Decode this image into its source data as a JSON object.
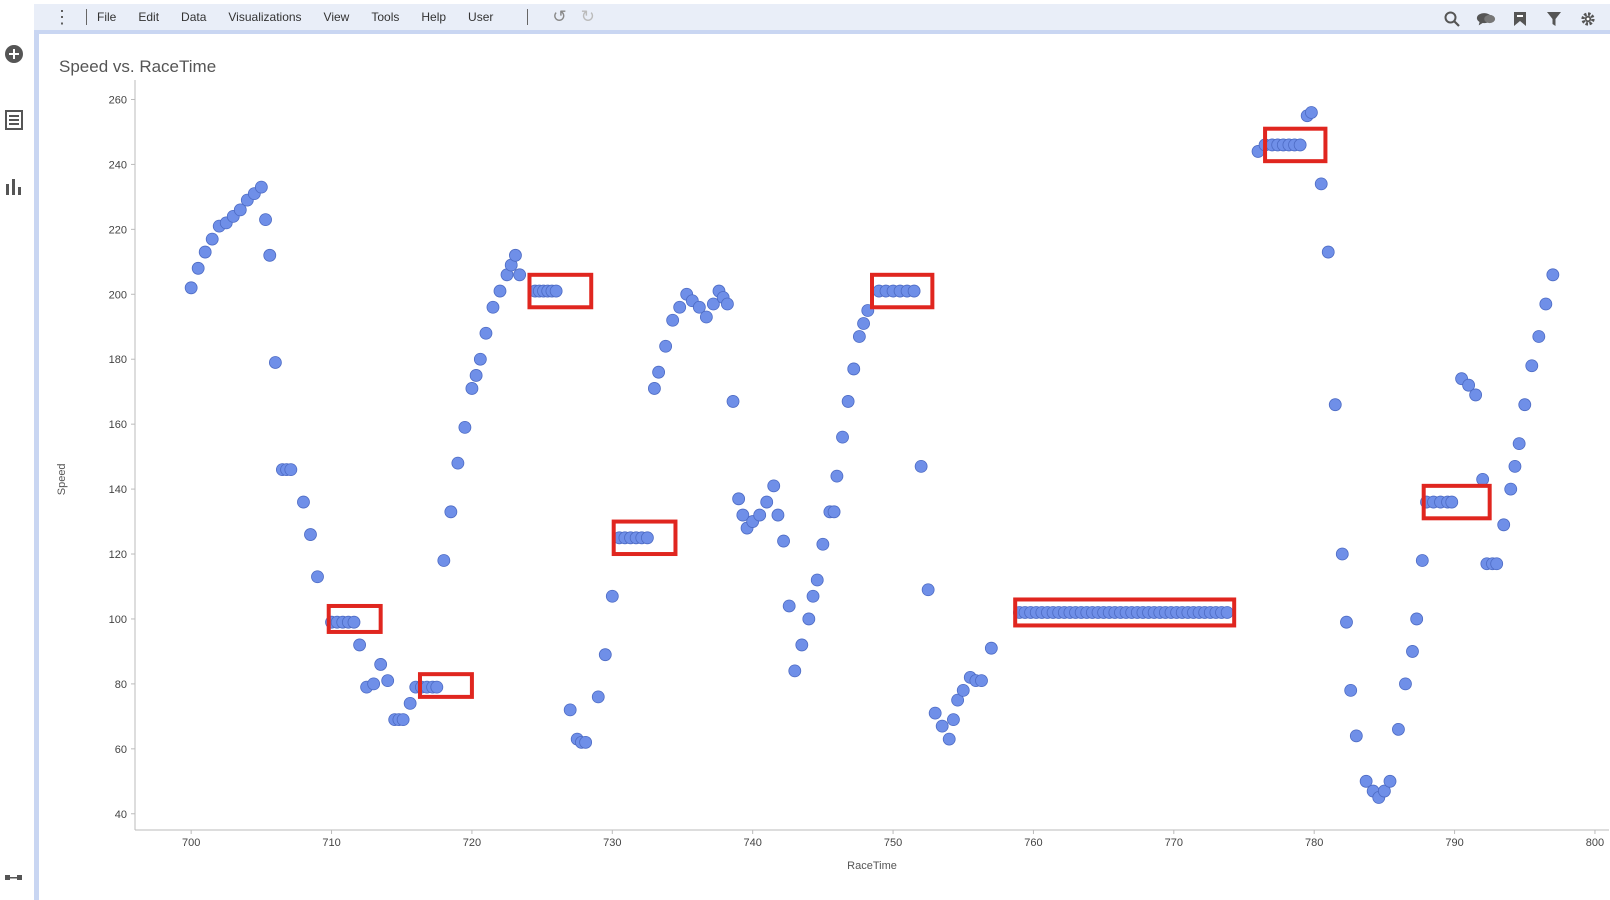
{
  "menu": {
    "items": [
      "File",
      "Edit",
      "Data",
      "Visualizations",
      "View",
      "Tools",
      "Help",
      "User"
    ],
    "undo_icon": "undo-icon",
    "redo_icon": "redo-icon"
  },
  "toolbar_right": [
    "search-icon",
    "comment-icon",
    "bookmark-icon",
    "filter-icon",
    "gear-icon"
  ],
  "left_rail": [
    "add-circle-icon",
    "list-icon",
    "bar-chart-icon"
  ],
  "colors": {
    "point": "#6f8fe8",
    "highlight": "#e0261f",
    "menubar": "#e9eef8"
  },
  "chart_data": {
    "type": "scatter",
    "title": "Speed vs. RaceTime",
    "xlabel": "RaceTime",
    "ylabel": "Speed",
    "xlim": [
      696,
      801
    ],
    "ylim": [
      35,
      266
    ],
    "xticks": [
      700,
      710,
      720,
      730,
      740,
      750,
      760,
      770,
      780,
      790,
      800
    ],
    "yticks": [
      40,
      60,
      80,
      100,
      120,
      140,
      160,
      180,
      200,
      220,
      240,
      260
    ],
    "grid": false,
    "points": [
      [
        700,
        202
      ],
      [
        700.5,
        208
      ],
      [
        701,
        213
      ],
      [
        701.5,
        217
      ],
      [
        702,
        221
      ],
      [
        702.5,
        222
      ],
      [
        703,
        224
      ],
      [
        703.5,
        226
      ],
      [
        704,
        229
      ],
      [
        704.5,
        231
      ],
      [
        705,
        233
      ],
      [
        705.3,
        223
      ],
      [
        705.6,
        212
      ],
      [
        706,
        179
      ],
      [
        706.5,
        146
      ],
      [
        706.8,
        146
      ],
      [
        707.1,
        146
      ],
      [
        708,
        136
      ],
      [
        708.5,
        126
      ],
      [
        709,
        113
      ],
      [
        710,
        99
      ],
      [
        710.4,
        99
      ],
      [
        710.8,
        99
      ],
      [
        711.2,
        99
      ],
      [
        711.6,
        99
      ],
      [
        712,
        92
      ],
      [
        712.5,
        79
      ],
      [
        713,
        80
      ],
      [
        713.5,
        86
      ],
      [
        714,
        81
      ],
      [
        714.5,
        69
      ],
      [
        714.8,
        69
      ],
      [
        715.1,
        69
      ],
      [
        715.6,
        74
      ],
      [
        716,
        79
      ],
      [
        716.4,
        79
      ],
      [
        716.8,
        79
      ],
      [
        717.2,
        79
      ],
      [
        717.5,
        79
      ],
      [
        718,
        118
      ],
      [
        718.5,
        133
      ],
      [
        719,
        148
      ],
      [
        719.5,
        159
      ],
      [
        720,
        171
      ],
      [
        720.3,
        175
      ],
      [
        720.6,
        180
      ],
      [
        721,
        188
      ],
      [
        721.5,
        196
      ],
      [
        722,
        201
      ],
      [
        722.5,
        206
      ],
      [
        722.8,
        209
      ],
      [
        723.1,
        212
      ],
      [
        723.4,
        206
      ],
      [
        724.5,
        201
      ],
      [
        724.8,
        201
      ],
      [
        725.1,
        201
      ],
      [
        725.4,
        201
      ],
      [
        725.7,
        201
      ],
      [
        726,
        201
      ],
      [
        727,
        72
      ],
      [
        727.5,
        63
      ],
      [
        727.8,
        62
      ],
      [
        728.1,
        62
      ],
      [
        729,
        76
      ],
      [
        729.5,
        89
      ],
      [
        730,
        107
      ],
      [
        730.5,
        125
      ],
      [
        730.9,
        125
      ],
      [
        731.3,
        125
      ],
      [
        731.7,
        125
      ],
      [
        732.1,
        125
      ],
      [
        732.5,
        125
      ],
      [
        733,
        171
      ],
      [
        733.3,
        176
      ],
      [
        733.8,
        184
      ],
      [
        734.3,
        192
      ],
      [
        734.8,
        196
      ],
      [
        735.3,
        200
      ],
      [
        735.7,
        198
      ],
      [
        736.2,
        196
      ],
      [
        736.7,
        193
      ],
      [
        737.2,
        197
      ],
      [
        737.6,
        201
      ],
      [
        737.9,
        199
      ],
      [
        738.2,
        197
      ],
      [
        738.6,
        167
      ],
      [
        739,
        137
      ],
      [
        739.3,
        132
      ],
      [
        739.6,
        128
      ],
      [
        740,
        130
      ],
      [
        740.5,
        132
      ],
      [
        741,
        136
      ],
      [
        741.5,
        141
      ],
      [
        741.8,
        132
      ],
      [
        742.2,
        124
      ],
      [
        742.6,
        104
      ],
      [
        743,
        84
      ],
      [
        743.5,
        92
      ],
      [
        744,
        100
      ],
      [
        744.3,
        107
      ],
      [
        744.6,
        112
      ],
      [
        745,
        123
      ],
      [
        745.5,
        133
      ],
      [
        745.8,
        133
      ],
      [
        746,
        144
      ],
      [
        746.4,
        156
      ],
      [
        746.8,
        167
      ],
      [
        747.2,
        177
      ],
      [
        747.6,
        187
      ],
      [
        747.9,
        191
      ],
      [
        748.2,
        195
      ],
      [
        749,
        201
      ],
      [
        749.5,
        201
      ],
      [
        750,
        201
      ],
      [
        750.5,
        201
      ],
      [
        751,
        201
      ],
      [
        751.5,
        201
      ],
      [
        752,
        147
      ],
      [
        752.5,
        109
      ],
      [
        753,
        71
      ],
      [
        753.5,
        67
      ],
      [
        754,
        63
      ],
      [
        754.3,
        69
      ],
      [
        754.6,
        75
      ],
      [
        755,
        78
      ],
      [
        755.5,
        82
      ],
      [
        755.9,
        81
      ],
      [
        756.3,
        81
      ],
      [
        757,
        91
      ],
      [
        759,
        102
      ],
      [
        759.4,
        102
      ],
      [
        759.8,
        102
      ],
      [
        760.2,
        102
      ],
      [
        760.6,
        102
      ],
      [
        761,
        102
      ],
      [
        761.4,
        102
      ],
      [
        761.8,
        102
      ],
      [
        762.2,
        102
      ],
      [
        762.6,
        102
      ],
      [
        763,
        102
      ],
      [
        763.4,
        102
      ],
      [
        763.8,
        102
      ],
      [
        764.2,
        102
      ],
      [
        764.6,
        102
      ],
      [
        765,
        102
      ],
      [
        765.4,
        102
      ],
      [
        765.8,
        102
      ],
      [
        766.2,
        102
      ],
      [
        766.6,
        102
      ],
      [
        767,
        102
      ],
      [
        767.4,
        102
      ],
      [
        767.8,
        102
      ],
      [
        768.2,
        102
      ],
      [
        768.6,
        102
      ],
      [
        769,
        102
      ],
      [
        769.4,
        102
      ],
      [
        769.8,
        102
      ],
      [
        770.2,
        102
      ],
      [
        770.6,
        102
      ],
      [
        771,
        102
      ],
      [
        771.4,
        102
      ],
      [
        771.8,
        102
      ],
      [
        772.2,
        102
      ],
      [
        772.6,
        102
      ],
      [
        773,
        102
      ],
      [
        773.4,
        102
      ],
      [
        773.8,
        102
      ],
      [
        776,
        244
      ],
      [
        776.5,
        246
      ],
      [
        777,
        246
      ],
      [
        777.4,
        246
      ],
      [
        777.8,
        246
      ],
      [
        778.2,
        246
      ],
      [
        778.6,
        246
      ],
      [
        779,
        246
      ],
      [
        779.5,
        255
      ],
      [
        779.8,
        256
      ],
      [
        780.5,
        234
      ],
      [
        781,
        213
      ],
      [
        781.5,
        166
      ],
      [
        782,
        120
      ],
      [
        782.3,
        99
      ],
      [
        782.6,
        78
      ],
      [
        783,
        64
      ],
      [
        783.7,
        50
      ],
      [
        784.2,
        47
      ],
      [
        784.6,
        45
      ],
      [
        785,
        47
      ],
      [
        785.4,
        50
      ],
      [
        786,
        66
      ],
      [
        786.5,
        80
      ],
      [
        787,
        90
      ],
      [
        787.3,
        100
      ],
      [
        787.7,
        118
      ],
      [
        788,
        136
      ],
      [
        788.5,
        136
      ],
      [
        789,
        136
      ],
      [
        789.5,
        136
      ],
      [
        789.8,
        136
      ],
      [
        790.5,
        174
      ],
      [
        791,
        172
      ],
      [
        791.5,
        169
      ],
      [
        792,
        143
      ],
      [
        792.3,
        117
      ],
      [
        792.7,
        117
      ],
      [
        793,
        117
      ],
      [
        793.5,
        129
      ],
      [
        794,
        140
      ],
      [
        794.3,
        147
      ],
      [
        794.6,
        154
      ],
      [
        795,
        166
      ],
      [
        795.5,
        178
      ],
      [
        796,
        187
      ],
      [
        796.5,
        197
      ],
      [
        797,
        206
      ]
    ],
    "highlights": [
      [
        709.8,
        713.5,
        96,
        104
      ],
      [
        716.3,
        720,
        76,
        83
      ],
      [
        724.1,
        728.5,
        196,
        206
      ],
      [
        730.1,
        734.5,
        120,
        130
      ],
      [
        748.5,
        752.8,
        196,
        206
      ],
      [
        758.7,
        774.3,
        98,
        106
      ],
      [
        776.5,
        780.8,
        241,
        251
      ],
      [
        787.8,
        792.5,
        131,
        141
      ]
    ]
  }
}
